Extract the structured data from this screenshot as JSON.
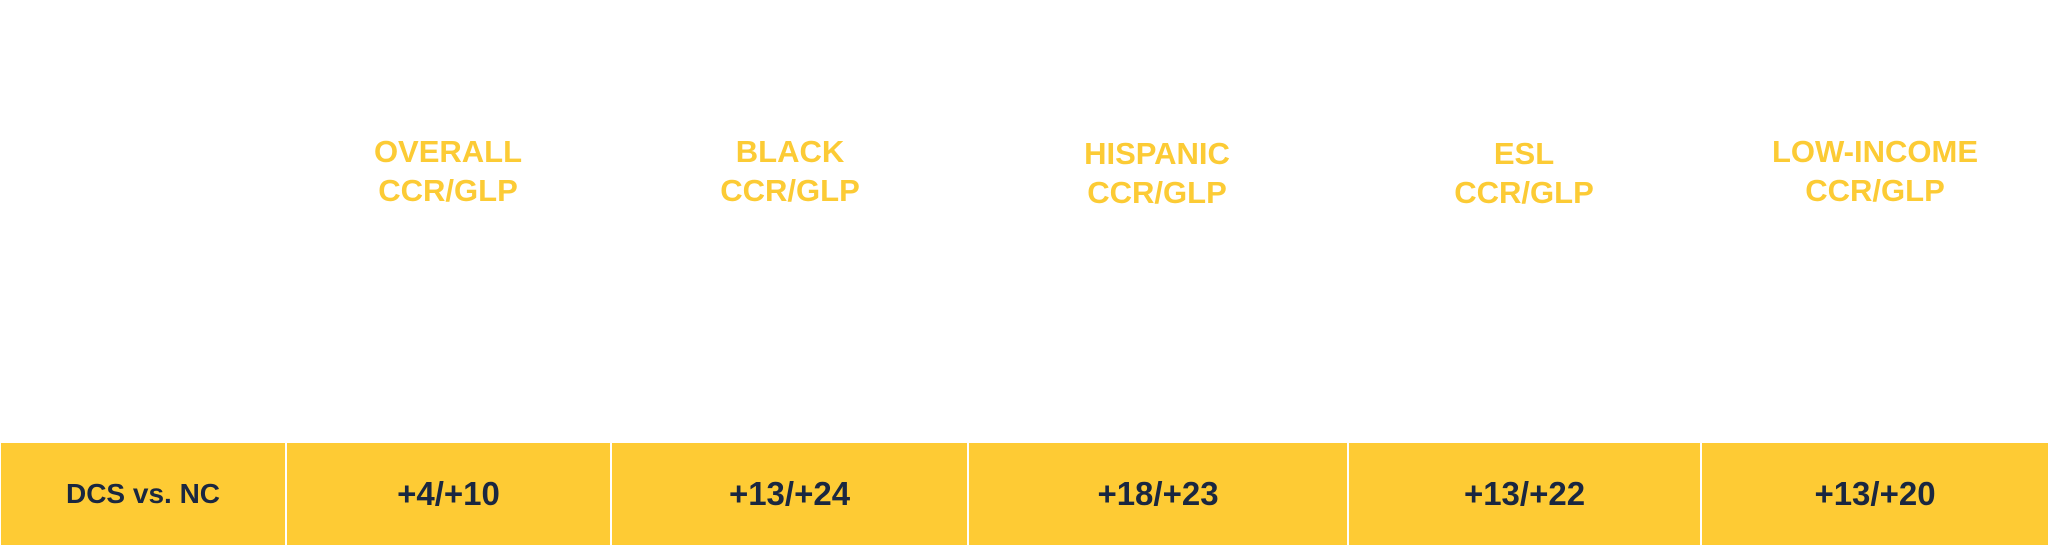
{
  "table": {
    "headers": [
      {
        "line1": "OVERALL",
        "line2": "CCR/GLP"
      },
      {
        "line1": "BLACK",
        "line2": "CCR/GLP"
      },
      {
        "line1": "HISPANIC",
        "line2": "CCR/GLP"
      },
      {
        "line1": "ESL",
        "line2": "CCR/GLP"
      },
      {
        "line1": "LOW-INCOME",
        "line2": "CCR/GLP"
      }
    ],
    "row": {
      "label": "DCS vs. NC",
      "values": [
        "+4/+10",
        "+13/+24",
        "+18/+23",
        "+13/+22",
        "+13/+20"
      ]
    }
  },
  "colors": {
    "header_text": "#fccb35",
    "cell_background": "#fecb34",
    "cell_text": "#1a2740"
  }
}
